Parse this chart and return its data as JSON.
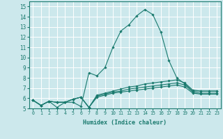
{
  "xlabel": "Humidex (Indice chaleur)",
  "bg_color": "#cce8ec",
  "grid_color": "#ffffff",
  "line_color": "#1a7a6e",
  "xlim": [
    -0.5,
    23.5
  ],
  "ylim": [
    5,
    15.5
  ],
  "yticks": [
    5,
    6,
    7,
    8,
    9,
    10,
    11,
    12,
    13,
    14,
    15
  ],
  "xticks": [
    0,
    1,
    2,
    3,
    4,
    5,
    6,
    7,
    8,
    9,
    10,
    11,
    12,
    13,
    14,
    15,
    16,
    17,
    18,
    19,
    20,
    21,
    22,
    23
  ],
  "series": [
    [
      5.8,
      5.3,
      5.7,
      5.1,
      5.6,
      5.6,
      5.2,
      8.5,
      8.2,
      9.0,
      11.0,
      12.6,
      13.2,
      14.1,
      14.7,
      14.2,
      12.5,
      9.7,
      8.0,
      7.4,
      6.7,
      6.7,
      6.7,
      6.7
    ],
    [
      5.8,
      5.3,
      5.7,
      5.6,
      5.6,
      5.9,
      6.1,
      5.1,
      6.3,
      6.5,
      6.7,
      6.9,
      7.1,
      7.2,
      7.4,
      7.5,
      7.6,
      7.7,
      7.8,
      7.5,
      6.8,
      6.7,
      6.7,
      6.7
    ],
    [
      5.8,
      5.3,
      5.7,
      5.6,
      5.6,
      5.9,
      6.1,
      5.1,
      6.2,
      6.4,
      6.6,
      6.7,
      6.9,
      7.0,
      7.1,
      7.2,
      7.3,
      7.4,
      7.5,
      7.3,
      6.6,
      6.5,
      6.5,
      6.5
    ],
    [
      5.8,
      5.3,
      5.7,
      5.6,
      5.6,
      5.9,
      6.1,
      5.1,
      6.1,
      6.3,
      6.5,
      6.6,
      6.7,
      6.8,
      6.9,
      7.0,
      7.1,
      7.2,
      7.3,
      7.1,
      6.5,
      6.4,
      6.4,
      6.4
    ]
  ]
}
